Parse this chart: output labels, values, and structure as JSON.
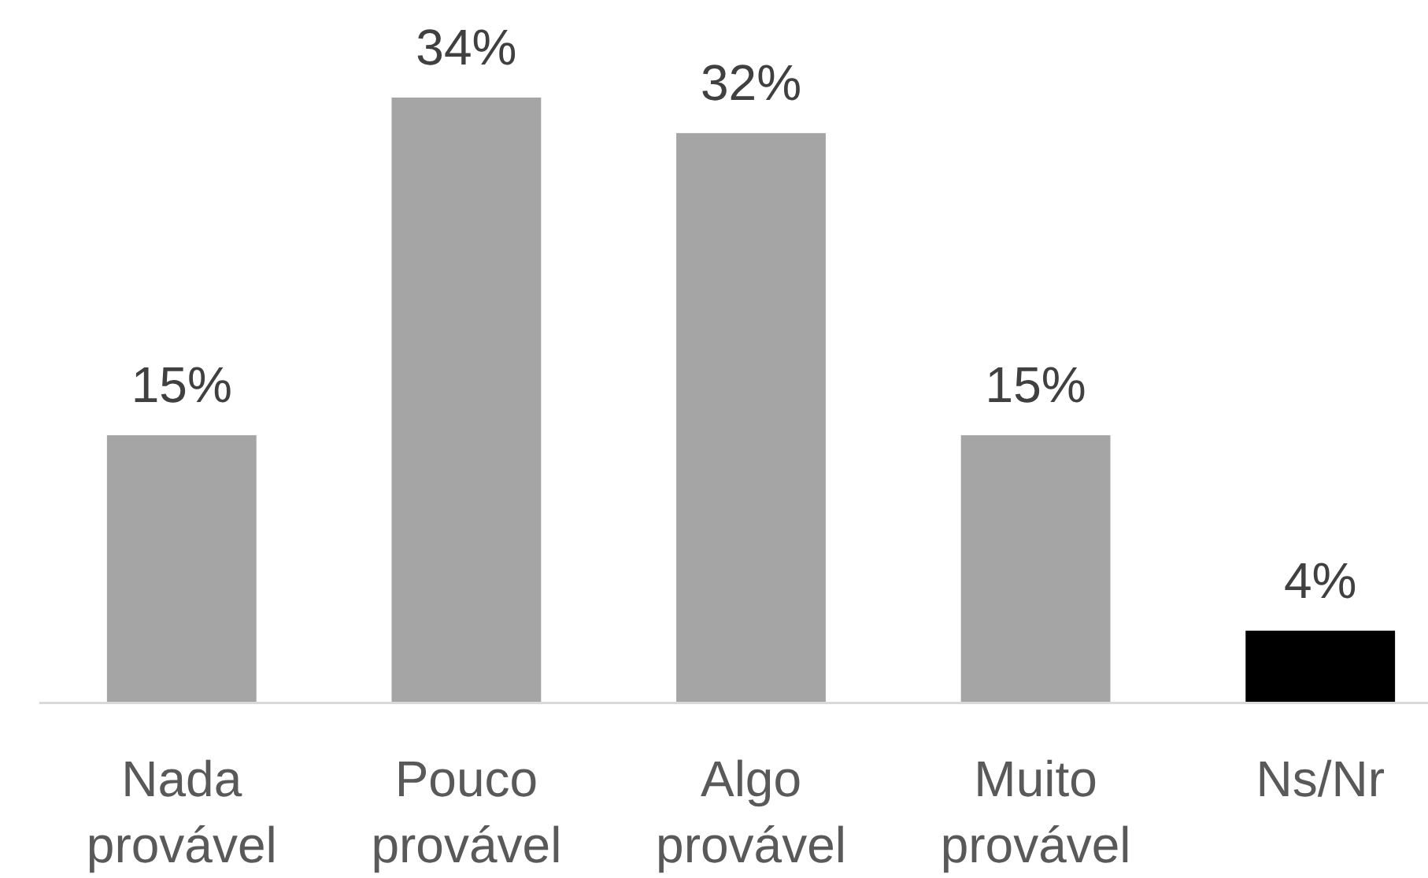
{
  "chart_data": {
    "type": "bar",
    "categories": [
      "Nada provável",
      "Pouco provável",
      "Algo provável",
      "Muito provável",
      "Ns/Nr"
    ],
    "values": [
      15,
      34,
      32,
      15,
      4
    ],
    "colors": [
      "#a5a5a5",
      "#a5a5a5",
      "#a5a5a5",
      "#a5a5a5",
      "#000000"
    ],
    "value_labels": [
      "15%",
      "34%",
      "32%",
      "15%",
      "4%"
    ]
  }
}
